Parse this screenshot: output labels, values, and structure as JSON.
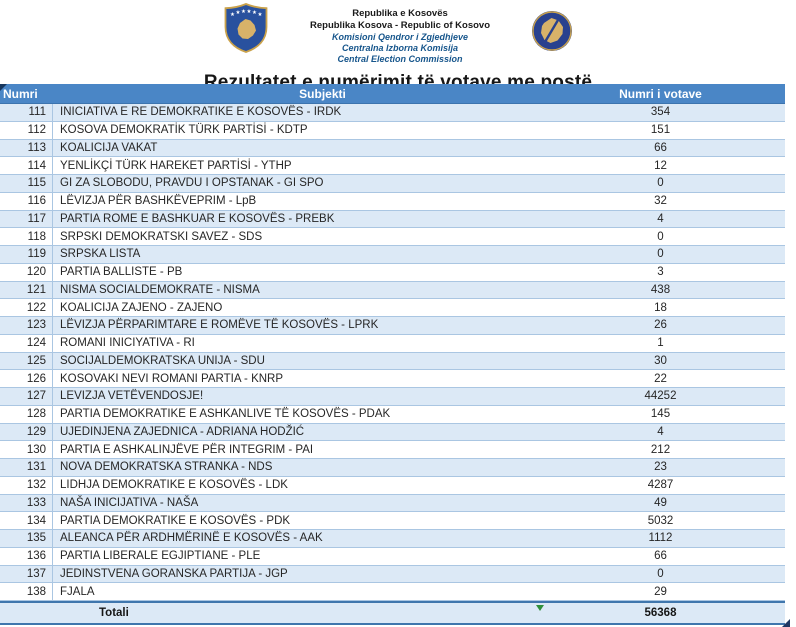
{
  "header": {
    "org_lines": [
      "Republika e Kosovës",
      "Republika Kosova - Republic of Kosovo",
      "Komisioni Qendror i Zgjedhjeve",
      "Centralna Izborna Komisija",
      "Central Election Commission"
    ],
    "title": "Rezultatet e numërimit të votave me postë"
  },
  "icons": {
    "left_logo": "kosovo-coat-of-arms",
    "right_logo": "central-election-commission-emblem",
    "total_cell_flag": "green-corner-flag",
    "table_corner_handle": "navy-fill-handle-triangle"
  },
  "colors": {
    "header_blue": "#4a86c6",
    "row_alt_blue": "#dce9f6",
    "row_border": "#aac6e2",
    "total_border": "#3f76ad",
    "org_text_blue": "#17568c",
    "flag_green": "#2f8f3a",
    "handle_navy": "#1f3864",
    "emblem_blue": "#29418e",
    "emblem_gold": "#d8b269"
  },
  "table": {
    "columns": [
      "Numri",
      "Subjekti",
      "Numri i votave"
    ],
    "rows": [
      {
        "numri": "111",
        "subjekti": "INICIATIVA E RE DEMOKRATIKE E KOSOVËS - IRDK",
        "votave": "354"
      },
      {
        "numri": "112",
        "subjekti": "KOSOVA DEMOKRATİK TÜRK PARTİSİ - KDTP",
        "votave": "151"
      },
      {
        "numri": "113",
        "subjekti": "KOALICIJA VAKAT",
        "votave": "66"
      },
      {
        "numri": "114",
        "subjekti": "YENLİKÇİ TÜRK HAREKET PARTİSİ - YTHP",
        "votave": "12"
      },
      {
        "numri": "115",
        "subjekti": "GI ZA SLOBODU, PRAVDU I OPSTANAK - GI SPO",
        "votave": "0"
      },
      {
        "numri": "116",
        "subjekti": "LËVIZJA PËR BASHKËVEPRIM - LpB",
        "votave": "32"
      },
      {
        "numri": "117",
        "subjekti": "PARTIA ROME E BASHKUAR E KOSOVËS - PREBK",
        "votave": "4"
      },
      {
        "numri": "118",
        "subjekti": "SRPSKI DEMOKRATSKI SAVEZ - SDS",
        "votave": "0"
      },
      {
        "numri": "119",
        "subjekti": "SRPSKA LISTA",
        "votave": "0"
      },
      {
        "numri": "120",
        "subjekti": "PARTIA BALLISTE - PB",
        "votave": "3"
      },
      {
        "numri": "121",
        "subjekti": "NISMA SOCIALDEMOKRATE - NISMA",
        "votave": "438"
      },
      {
        "numri": "122",
        "subjekti": "KOALICIJA ZAJENO - ZAJENO",
        "votave": "18"
      },
      {
        "numri": "123",
        "subjekti": "LËVIZJA PËRPARIMTARE E ROMËVE TË KOSOVËS - LPRK",
        "votave": "26"
      },
      {
        "numri": "124",
        "subjekti": "ROMANI INICIYATIVA - RI",
        "votave": "1"
      },
      {
        "numri": "125",
        "subjekti": "SOCIJALDEMOKRATSKA UNIJA - SDU",
        "votave": "30"
      },
      {
        "numri": "126",
        "subjekti": "KOSOVAKI NEVI ROMANI PARTIA - KNRP",
        "votave": "22"
      },
      {
        "numri": "127",
        "subjekti": "LEVIZJA VETËVENDOSJE!",
        "votave": "44252"
      },
      {
        "numri": "128",
        "subjekti": "PARTIA DEMOKRATIKE E ASHKANLIVE TË KOSOVËS - PDAK",
        "votave": "145"
      },
      {
        "numri": "129",
        "subjekti": "UJEDINJENA ZAJEDNICA - ADRIANA HODŽIĆ",
        "votave": "4"
      },
      {
        "numri": "130",
        "subjekti": "PARTIA E ASHKALINJËVE PËR INTEGRIM - PAI",
        "votave": "212"
      },
      {
        "numri": "131",
        "subjekti": "NOVA DEMOKRATSKA STRANKA - NDS",
        "votave": "23"
      },
      {
        "numri": "132",
        "subjekti": "LIDHJA DEMOKRATIKE E KOSOVËS - LDK",
        "votave": "4287"
      },
      {
        "numri": "133",
        "subjekti": "NAŠA INICIJATIVA - NAŠA",
        "votave": "49"
      },
      {
        "numri": "134",
        "subjekti": "PARTIA DEMOKRATIKE E KOSOVËS - PDK",
        "votave": "5032"
      },
      {
        "numri": "135",
        "subjekti": "ALEANCA PËR ARDHMËRINË E KOSOVËS - AAK",
        "votave": "1112"
      },
      {
        "numri": "136",
        "subjekti": "PARTIA LIBERALE EGJIPTIANE - PLE",
        "votave": "66"
      },
      {
        "numri": "137",
        "subjekti": "JEDINSTVENA GORANSKA PARTIJA - JGP",
        "votave": "0"
      },
      {
        "numri": "138",
        "subjekti": "FJALA",
        "votave": "29"
      }
    ],
    "total": {
      "label": "Totali",
      "value": "56368"
    }
  }
}
